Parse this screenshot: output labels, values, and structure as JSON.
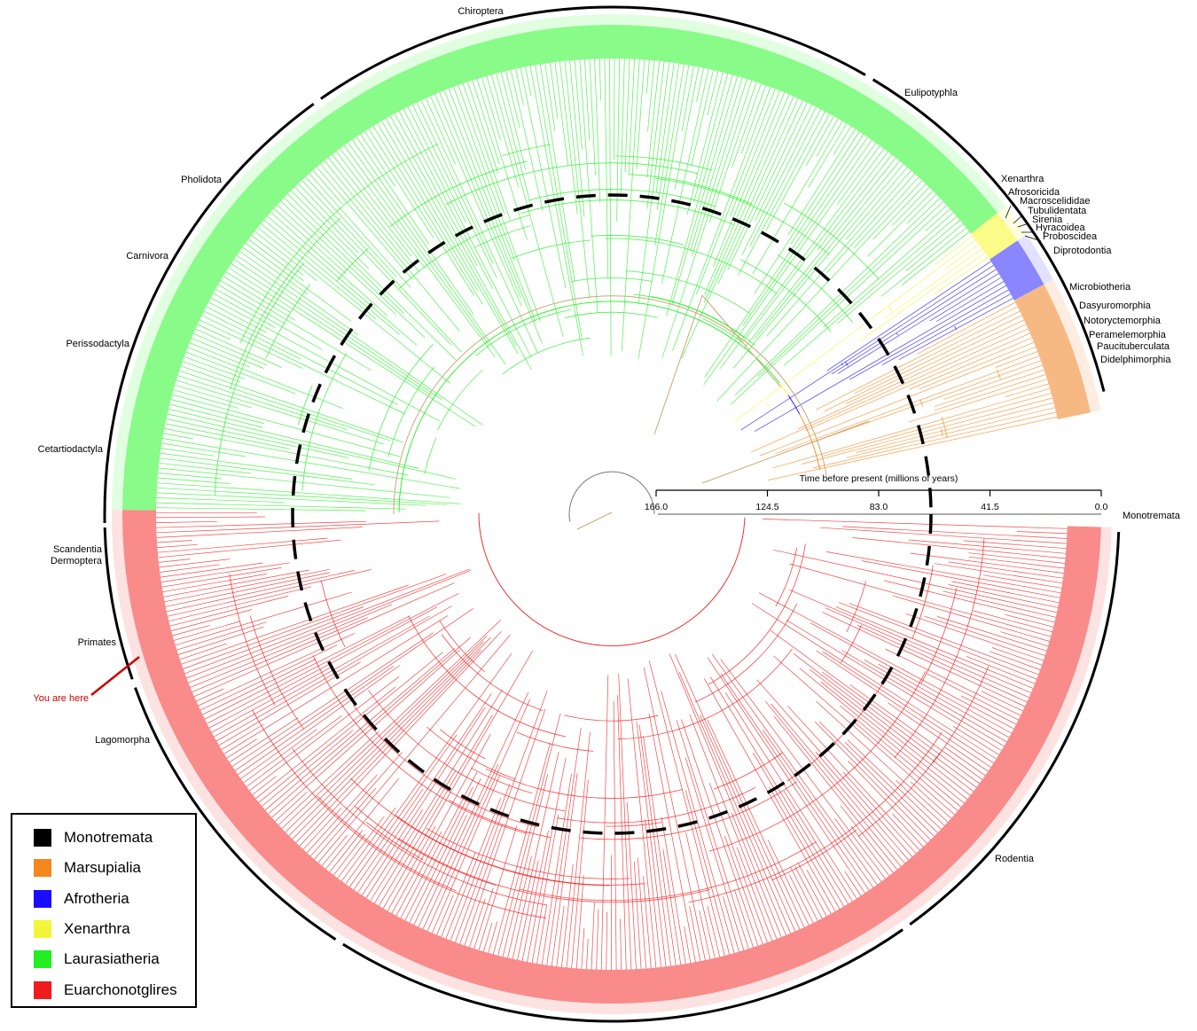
{
  "figure": {
    "order_labels": [
      "Chiroptera",
      "Eulipotyphla",
      "Pholidota",
      "Carnivora",
      "Perissodactyla",
      "Cetartiodactyla",
      "Scandentia",
      "Dermoptera",
      "Primates",
      "Lagomorpha",
      "Rodentia",
      "Monotremata",
      "Xenarthra",
      "Afrosoricida",
      "Macroscelididae",
      "Tubulidentata",
      "Sirenia",
      "Hyracoidea",
      "Proboscidea",
      "Diprotodontia",
      "Microbiotheria",
      "Dasyuromorphia",
      "Notoryctemorphia",
      "Peramelemorphia",
      "Paucituberculata",
      "Didelphimorphia"
    ],
    "time_axis": {
      "title": "Time before present (millions of years)",
      "ticks": [
        "166.0",
        "124.5",
        "83.0",
        "41.5",
        "0.0"
      ]
    },
    "annotation": "You are here"
  },
  "legend": {
    "items": [
      {
        "label": "Monotremata",
        "color": "#000000"
      },
      {
        "label": "Marsupialia",
        "color": "#f5871f"
      },
      {
        "label": "Afrotheria",
        "color": "#1a0dff"
      },
      {
        "label": "Xenarthra",
        "color": "#f4f43a"
      },
      {
        "label": "Laurasiatheria",
        "color": "#22ee22"
      },
      {
        "label": "Euarchonotglires",
        "color": "#ee1c1c"
      }
    ]
  }
}
